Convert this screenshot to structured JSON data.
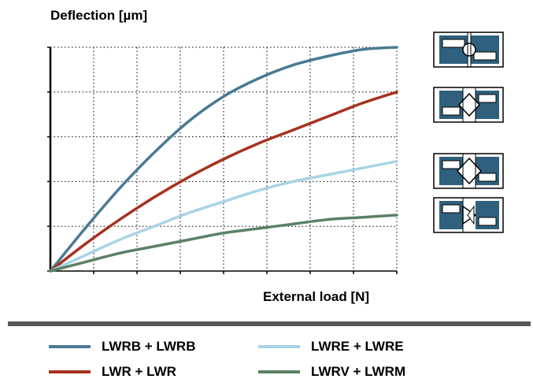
{
  "chart_data": {
    "type": "line",
    "title": "",
    "ylabel": "Deflection [µm]",
    "xlabel": "External load [N]",
    "xlim": [
      0,
      1
    ],
    "ylim": [
      0,
      1
    ],
    "grid": true,
    "legend_placement": "bottom",
    "series": [
      {
        "name": "LWRB + LWRB",
        "color": "#4a7a94",
        "x": [
          0,
          0.1,
          0.2,
          0.3,
          0.4,
          0.5,
          0.6,
          0.7,
          0.8,
          0.9,
          1.0
        ],
        "y": [
          0,
          0.19,
          0.37,
          0.53,
          0.67,
          0.78,
          0.86,
          0.92,
          0.96,
          0.99,
          1.0
        ]
      },
      {
        "name": "LWR + LWR",
        "color": "#a63220",
        "x": [
          0,
          0.1,
          0.2,
          0.3,
          0.4,
          0.5,
          0.6,
          0.7,
          0.8,
          0.9,
          1.0
        ],
        "y": [
          0,
          0.12,
          0.23,
          0.33,
          0.42,
          0.5,
          0.57,
          0.63,
          0.69,
          0.75,
          0.8
        ]
      },
      {
        "name": "LWRE + LWRE",
        "color": "#a8d4e6",
        "x": [
          0,
          0.1,
          0.2,
          0.3,
          0.4,
          0.5,
          0.6,
          0.7,
          0.8,
          0.9,
          1.0
        ],
        "y": [
          0,
          0.07,
          0.14,
          0.2,
          0.26,
          0.31,
          0.36,
          0.4,
          0.43,
          0.46,
          0.49
        ]
      },
      {
        "name": "LWRV + LWRM",
        "color": "#5b8065",
        "x": [
          0,
          0.1,
          0.2,
          0.3,
          0.4,
          0.5,
          0.6,
          0.7,
          0.8,
          0.9,
          1.0
        ],
        "y": [
          0,
          0.04,
          0.08,
          0.11,
          0.14,
          0.17,
          0.19,
          0.21,
          0.23,
          0.24,
          0.25
        ]
      }
    ]
  },
  "legend": {
    "items": [
      {
        "label": "LWRB + LWRB",
        "color": "#4a7a94"
      },
      {
        "label": "LWRE + LWRE",
        "color": "#a8d4e6"
      },
      {
        "label": "LWR + LWR",
        "color": "#a63220"
      },
      {
        "label": "LWRV + LWRM",
        "color": "#5b8065"
      }
    ]
  },
  "icons": {
    "bearing_1": "ball-bearing-section-icon",
    "bearing_2": "crossed-roller-bearing-section-icon",
    "bearing_3": "crossed-roller-bearing-section-icon",
    "bearing_4": "v-roller-bearing-section-icon",
    "accent": "#2f607d"
  }
}
